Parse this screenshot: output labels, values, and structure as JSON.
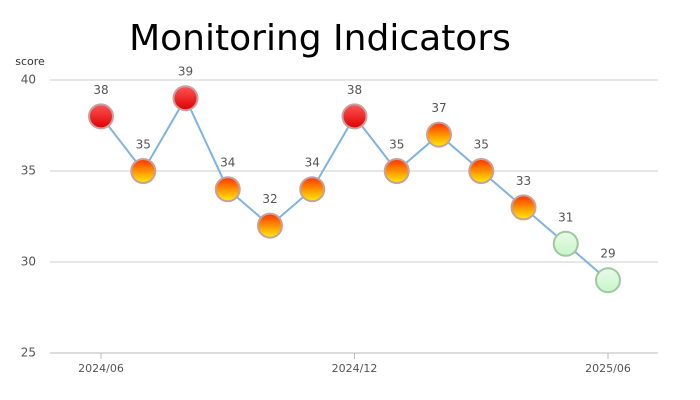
{
  "chart_data": {
    "type": "line",
    "title": "Monitoring Indicators",
    "y_label": "score",
    "categories": [
      "2024/06",
      null,
      null,
      null,
      null,
      null,
      "2024/12",
      null,
      null,
      null,
      null,
      null,
      "2025/06"
    ],
    "values": [
      38,
      35,
      39,
      34,
      32,
      34,
      38,
      35,
      37,
      35,
      33,
      31,
      29
    ],
    "line_color": "#7fb3e0",
    "point_colors": [
      "#ff0000",
      "#ffcc00",
      "#ff0000",
      "#ffcc00",
      "#ffcc00",
      "#ffcc00",
      "#ff0000",
      "#ffcc00",
      "#ffcc00",
      "#ffcc00",
      "#ffcc00",
      "#c8f5c8",
      "#c8f5c8"
    ],
    "ylim": [
      25,
      40
    ],
    "yticks": [
      25,
      30,
      35,
      40
    ],
    "grid": true
  }
}
